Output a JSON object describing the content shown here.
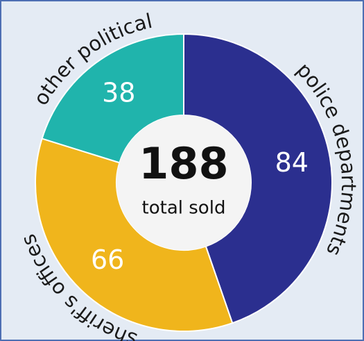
{
  "chart_data": {
    "type": "donut",
    "categories": [
      "police departments",
      "sheriff's offices",
      "other political"
    ],
    "values": [
      84,
      66,
      38
    ],
    "colors": [
      "#2b2f8f",
      "#f0b51c",
      "#20b4ac"
    ],
    "center_value": 188,
    "center_label": "total sold"
  }
}
